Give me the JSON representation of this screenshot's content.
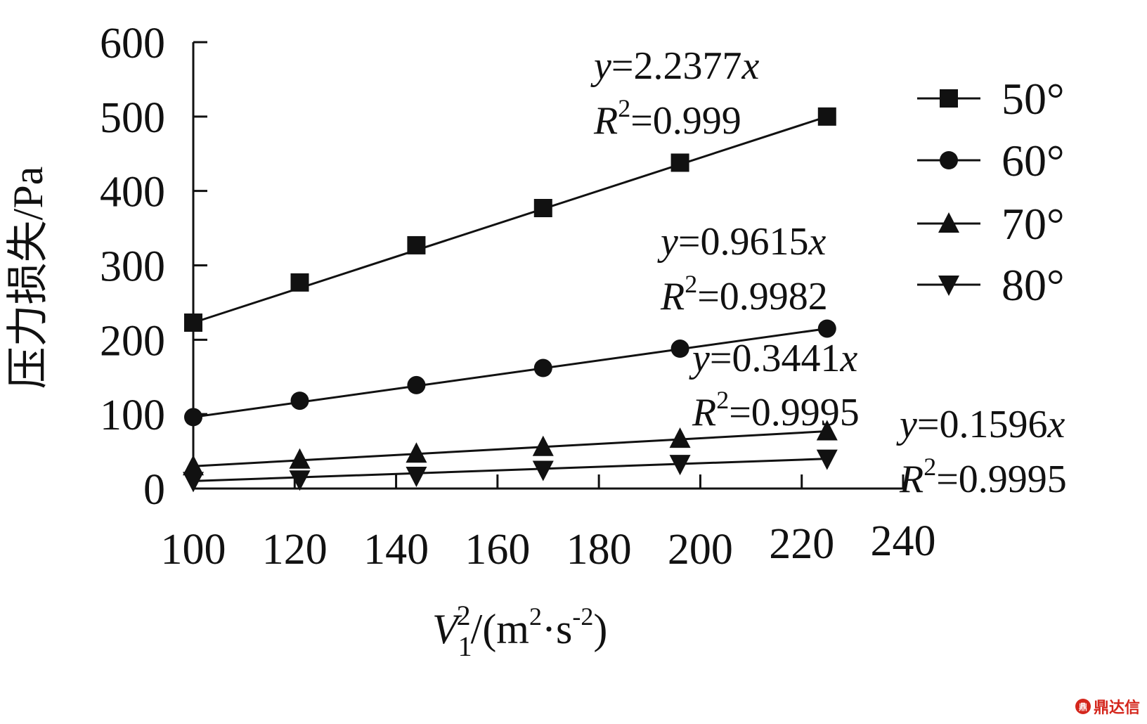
{
  "chart_data": {
    "type": "scatter",
    "xlabel": {
      "base": "V",
      "sub": "1",
      "sup": "2",
      "rest": "/(m",
      "rest_sup": "2",
      "rest2": "·s",
      "rest2_sup": "-2",
      "close": ")"
    },
    "ylabel": "压力损失/Pa",
    "xlim": [
      100,
      240
    ],
    "ylim": [
      0,
      600
    ],
    "x_ticks": [
      "100",
      "120",
      "140",
      "160",
      "180",
      "200",
      "220",
      "240"
    ],
    "y_ticks": [
      "0",
      "100",
      "200",
      "300",
      "400",
      "500",
      "600"
    ],
    "series": [
      {
        "name": "50°",
        "marker": "square",
        "x": [
          100,
          121,
          144,
          169,
          196,
          225
        ],
        "y": [
          223,
          277,
          327,
          377,
          438,
          500
        ],
        "fit_slope": 2.2377,
        "equation": {
          "y": "y",
          "eq": "=2.2377",
          "x": "x",
          "r": "R",
          "r_sup": "2",
          "r_val": "=0.999"
        }
      },
      {
        "name": "60°",
        "marker": "circle",
        "x": [
          100,
          121,
          144,
          169,
          196,
          225
        ],
        "y": [
          96,
          118,
          139,
          162,
          188,
          215
        ],
        "fit_slope": 0.9615,
        "equation": {
          "y": "y",
          "eq": "=0.9615",
          "x": "x",
          "r": "R",
          "r_sup": "2",
          "r_val": "=0.9982"
        }
      },
      {
        "name": "70°",
        "marker": "triangle-up",
        "x": [
          100,
          121,
          144,
          169,
          196,
          225
        ],
        "y": [
          30,
          39,
          47,
          56,
          67,
          77
        ],
        "fit_slope": 0.3441,
        "equation": {
          "y": "y",
          "eq": "=0.3441",
          "x": "x",
          "r": "R",
          "r_sup": "2",
          "r_val": "=0.9995"
        }
      },
      {
        "name": "80°",
        "marker": "triangle-down",
        "x": [
          100,
          121,
          144,
          169,
          196,
          225
        ],
        "y": [
          10,
          12,
          17,
          25,
          33,
          40
        ],
        "fit_slope": 0.1596,
        "equation": {
          "y": "y",
          "eq": "=0.1596",
          "x": "x",
          "r": "R",
          "r_sup": "2",
          "r_val": "=0.9995"
        }
      }
    ],
    "legend_position": "right",
    "grid": false
  },
  "watermark": {
    "logo": "鼎",
    "text": "鼎达信"
  }
}
